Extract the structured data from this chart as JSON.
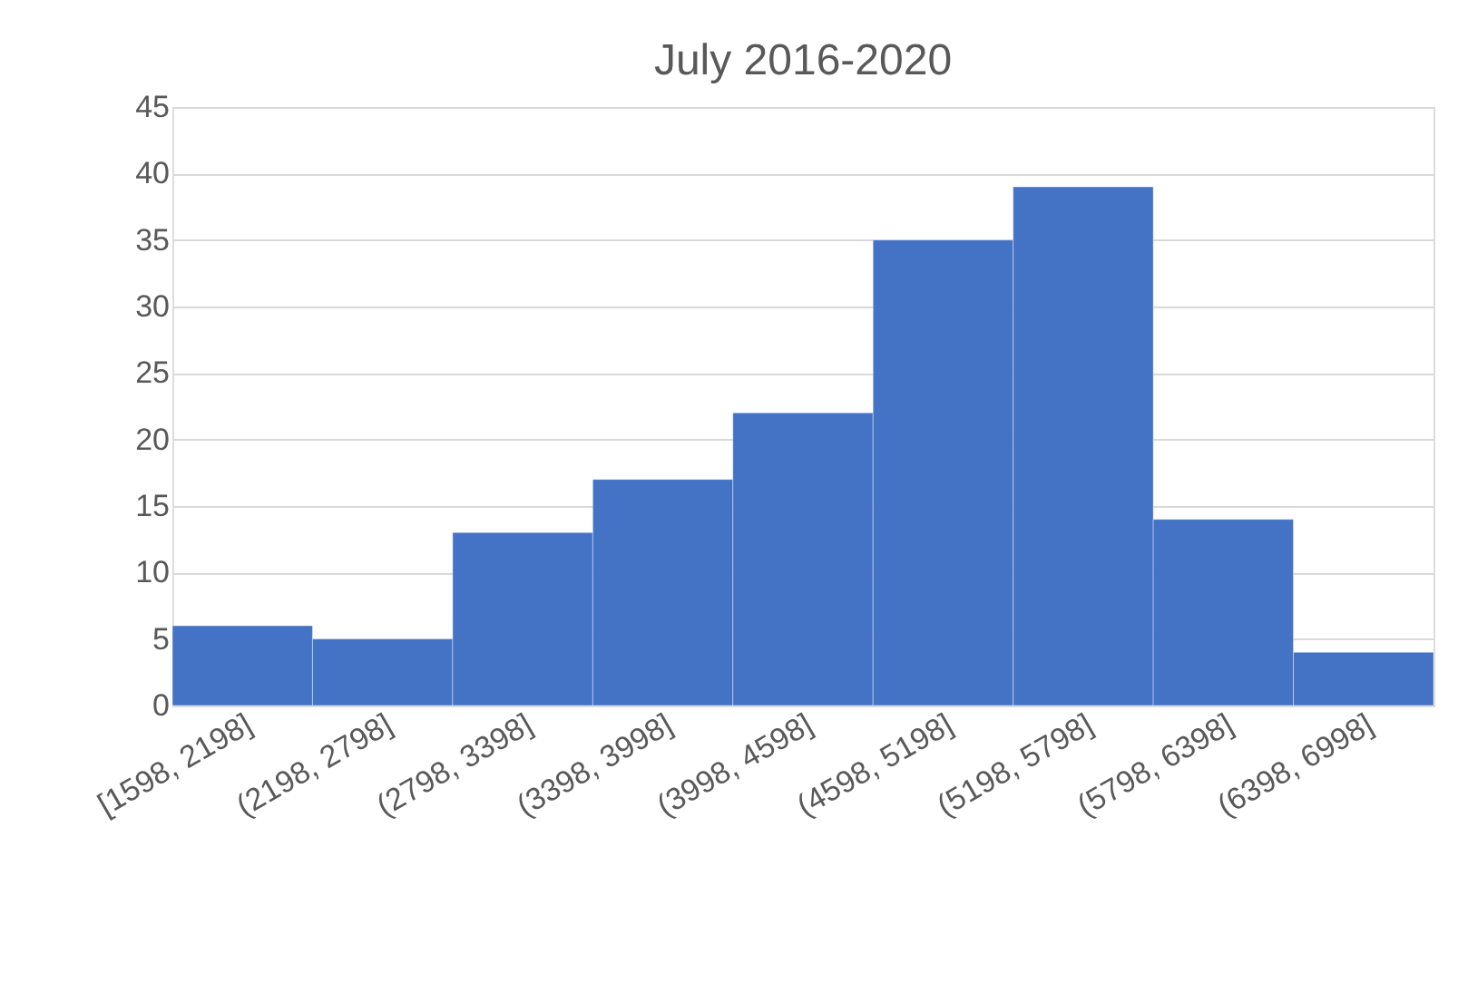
{
  "chart_data": {
    "type": "bar",
    "title": "July 2016-2020",
    "categories": [
      "[1598, 2198]",
      "(2198, 2798]",
      "(2798, 3398]",
      "(3398, 3998]",
      "(3998, 4598]",
      "(4598, 5198]",
      "(5198, 5798]",
      "(5798, 6398]",
      "(6398, 6998]"
    ],
    "values": [
      6,
      5,
      13,
      17,
      22,
      35,
      39,
      14,
      4
    ],
    "color": "#4472c4",
    "ylim": [
      0,
      45
    ],
    "yticks": [
      0,
      5,
      10,
      15,
      20,
      25,
      30,
      35,
      40,
      45
    ],
    "grid": "y"
  }
}
